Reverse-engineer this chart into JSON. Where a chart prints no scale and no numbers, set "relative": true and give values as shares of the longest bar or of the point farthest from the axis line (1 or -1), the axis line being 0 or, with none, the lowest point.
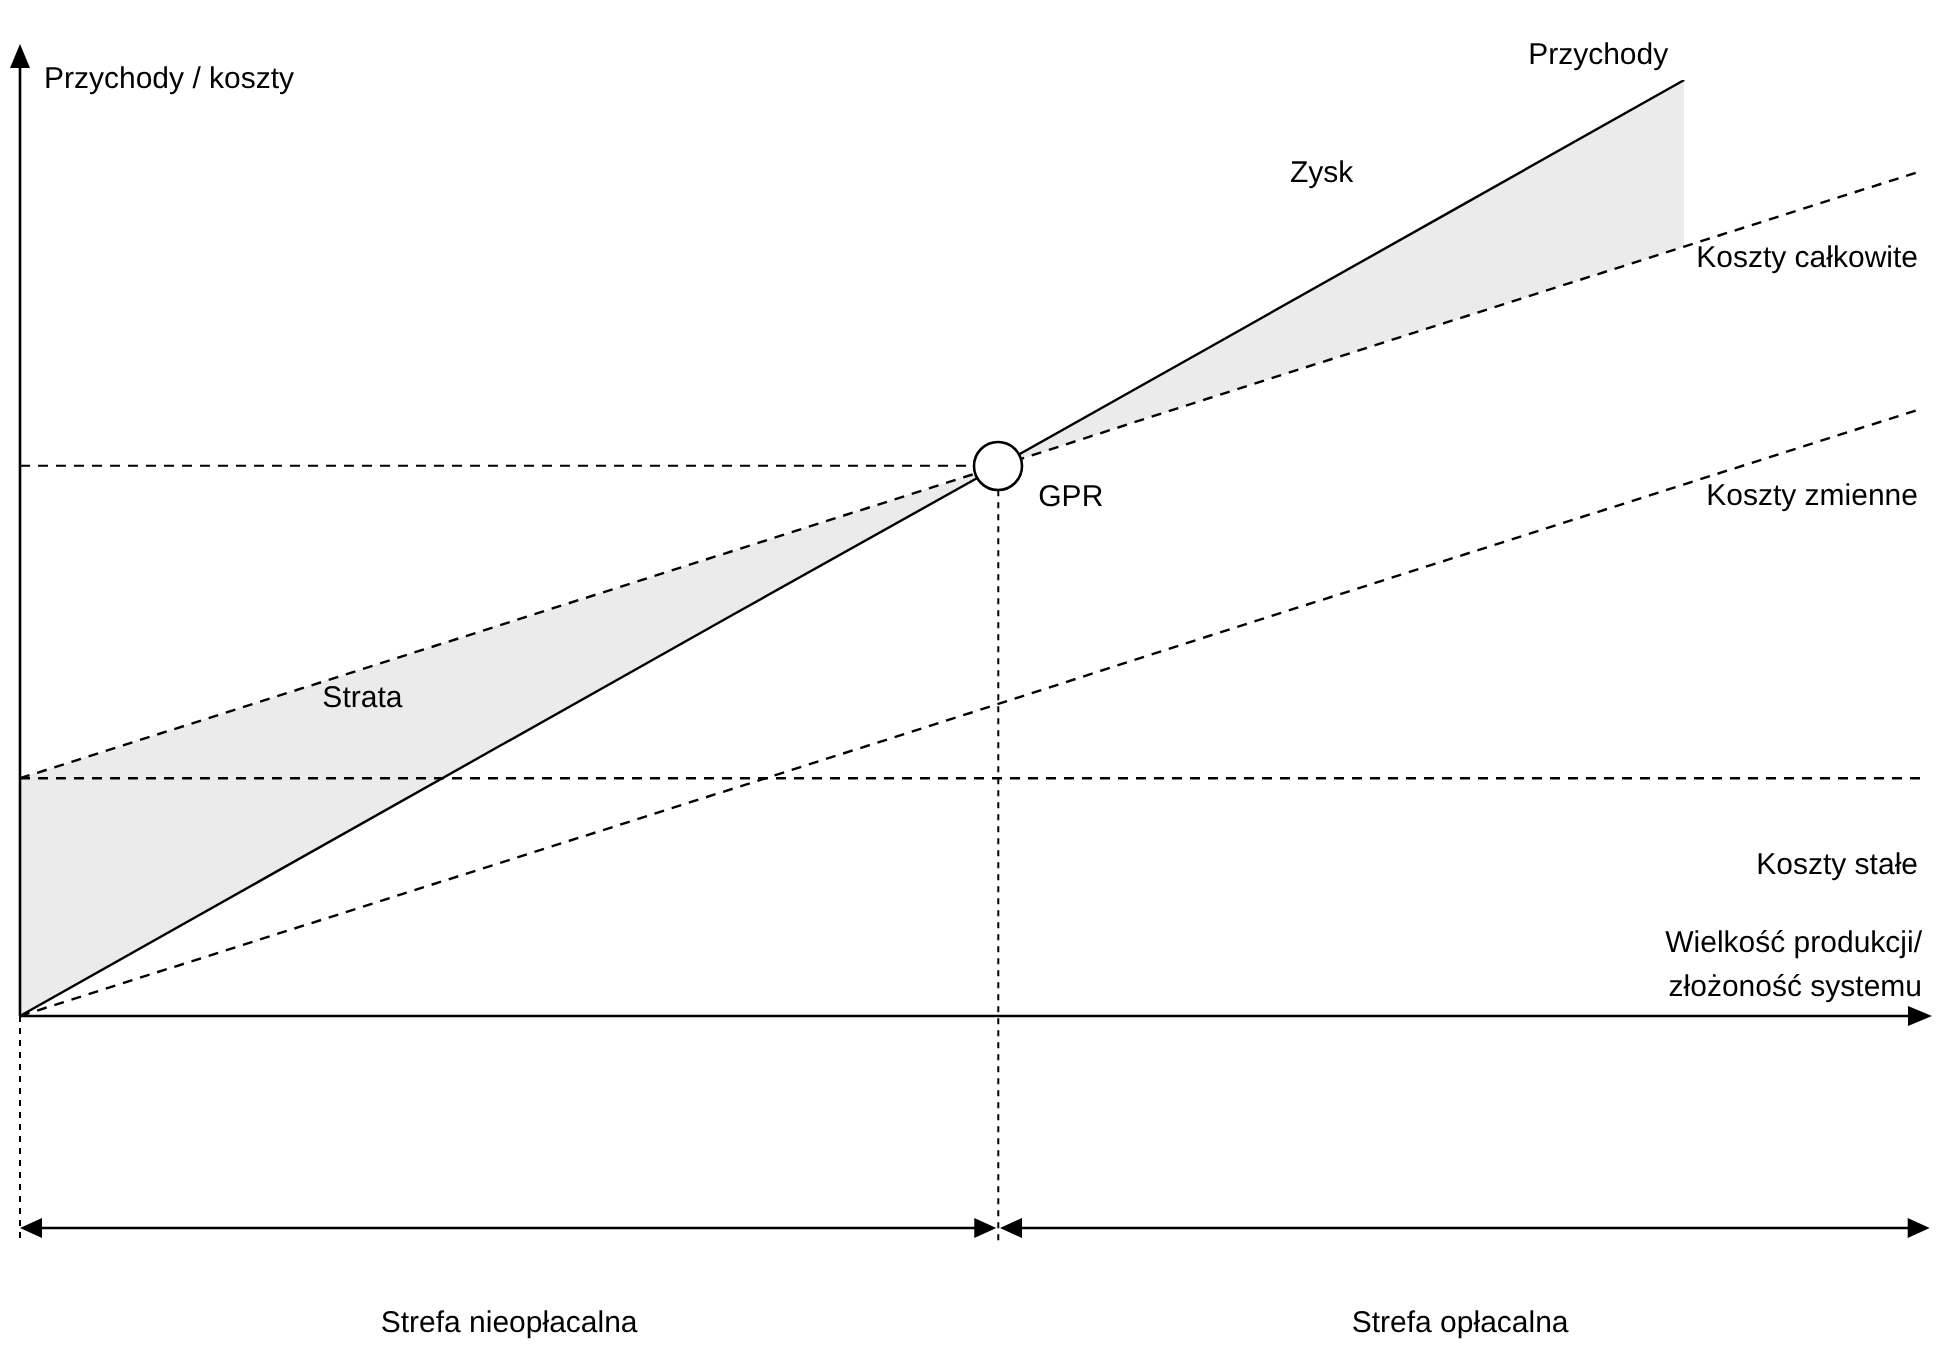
{
  "chart_data": {
    "type": "line",
    "relative": true,
    "ylabel": "Przychody / koszty",
    "xlabel": "Wielkość produkcji/\nzłożoność systemu",
    "categories": [
      null,
      null,
      null,
      null,
      null,
      null,
      null,
      null,
      null
    ],
    "series": [
      {
        "name": "Przychody",
        "color": "#000000",
        "line_style": "solid",
        "values": [
          0,
          0.143,
          0.286,
          0.429,
          0.571,
          0.714,
          0.857,
          1.0,
          null
        ]
      },
      {
        "name": "Koszty całkowite",
        "color": "#000000",
        "line_style": "dashed",
        "values": [
          0.254,
          0.335,
          0.416,
          0.497,
          0.578,
          0.66,
          0.741,
          0.822,
          0.903
        ]
      },
      {
        "name": "Koszty zmienne",
        "color": "#000000",
        "line_style": "dashed",
        "values": [
          0,
          0.081,
          0.162,
          0.243,
          0.324,
          0.406,
          0.487,
          0.568,
          0.649
        ]
      },
      {
        "name": "Koszty stałe",
        "color": "#000000",
        "line_style": "dashed",
        "values": [
          0.254,
          0.254,
          0.254,
          0.254,
          0.254,
          0.254,
          0.254,
          0.254,
          0.254
        ]
      }
    ],
    "ref_lines": [
      {
        "axis": "y",
        "value": 0.588,
        "line_style": "dashed"
      }
    ],
    "annotations": [
      "Zysk",
      "Strata",
      "GPR",
      "Strefa nieopłacalna",
      "Strefa opłacalna"
    ],
    "marker": "none",
    "legend": false
  }
}
